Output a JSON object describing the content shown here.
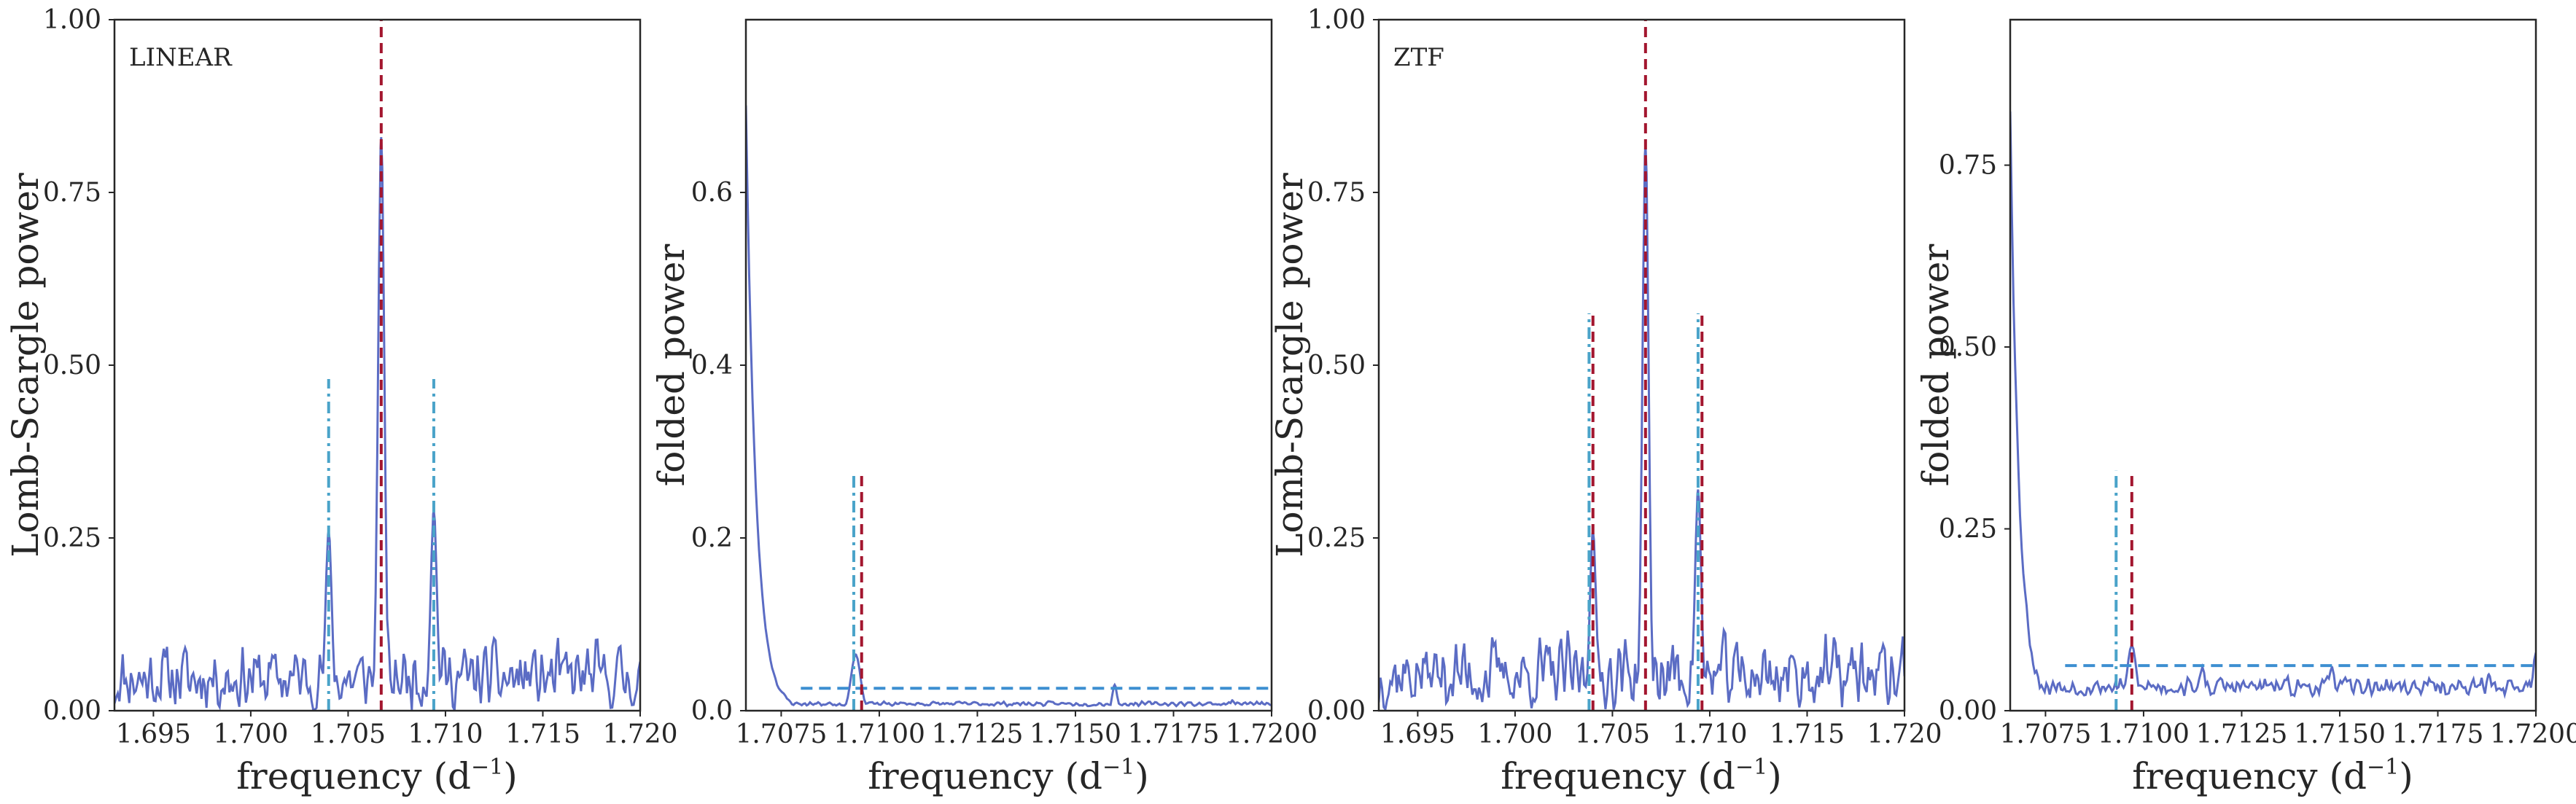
{
  "figure": {
    "colors": {
      "curve": "#5b6cc4",
      "main_line": "#a3162f",
      "alias_dashdot": "#4aa3c9",
      "threshold": "#3d8fd1",
      "axes": "#262626"
    }
  },
  "chart_data": [
    {
      "type": "line",
      "id": "linear-periodogram",
      "annotation": "LINEAR",
      "xlabel": "frequency (d",
      "xlabel_exp": "−1",
      "xlabel_close": ")",
      "ylabel": "Lomb-Scargle power",
      "xlim": [
        1.693,
        1.72
      ],
      "ylim": [
        0.0,
        1.0
      ],
      "xticks": [
        1.695,
        1.7,
        1.705,
        1.71,
        1.715,
        1.72
      ],
      "xtick_labels": [
        "1.695",
        "1.700",
        "1.705",
        "1.710",
        "1.715",
        "1.720"
      ],
      "yticks": [
        0.0,
        0.25,
        0.5,
        0.75,
        1.0
      ],
      "ytick_labels": [
        "0.00",
        "0.25",
        "0.50",
        "0.75",
        "1.00"
      ],
      "peaks": [
        {
          "x": 1.7067,
          "height": 0.83,
          "width": 0.00016
        },
        {
          "x": 1.704,
          "height": 0.26,
          "width": 0.00016
        },
        {
          "x": 1.7094,
          "height": 0.29,
          "width": 0.00016
        }
      ],
      "noise_level": 0.11,
      "seed": 11,
      "vlines": [
        {
          "x": 1.7067,
          "ymax": 1.0,
          "style": "main"
        },
        {
          "x": 1.704,
          "ymax": 0.48,
          "style": "alias"
        },
        {
          "x": 1.7094,
          "ymax": 0.48,
          "style": "alias"
        }
      ]
    },
    {
      "type": "line",
      "id": "linear-folded",
      "annotation": "",
      "xlabel": "frequency (d",
      "xlabel_exp": "−1",
      "xlabel_close": ")",
      "ylabel": "folded power",
      "xlim": [
        1.7066,
        1.72
      ],
      "ylim": [
        0.0,
        0.8
      ],
      "xticks": [
        1.7075,
        1.71,
        1.7125,
        1.715,
        1.7175,
        1.72
      ],
      "xtick_labels": [
        "1.7075",
        "1.7100",
        "1.7125",
        "1.7150",
        "1.7175",
        "1.7200"
      ],
      "yticks": [
        0.0,
        0.2,
        0.4,
        0.6
      ],
      "ytick_labels": [
        "0.0",
        "0.2",
        "0.4",
        "0.6"
      ],
      "decay": {
        "start": 0.7,
        "rate": 0.00025,
        "floor": 0.005
      },
      "peaks": [
        {
          "x": 1.7094,
          "height": 0.065,
          "width": 0.00012
        },
        {
          "x": 1.716,
          "height": 0.03,
          "width": 6e-05
        },
        {
          "x": 1.719,
          "height": 0.012,
          "width": 6e-05
        }
      ],
      "noise_level": 0.006,
      "seed": 23,
      "hline": {
        "y": 0.026,
        "xmin": 1.708,
        "xmax": 1.72
      },
      "vlines": [
        {
          "x": 1.70935,
          "ymax": 0.275,
          "style": "alias"
        },
        {
          "x": 1.70955,
          "ymax": 0.275,
          "style": "main"
        }
      ]
    },
    {
      "type": "line",
      "id": "ztf-periodogram",
      "annotation": "ZTF",
      "xlabel": "frequency (d",
      "xlabel_exp": "−1",
      "xlabel_close": ")",
      "ylabel": "Lomb-Scargle power",
      "xlim": [
        1.693,
        1.72
      ],
      "ylim": [
        0.0,
        1.0
      ],
      "xticks": [
        1.695,
        1.7,
        1.705,
        1.71,
        1.715,
        1.72
      ],
      "xtick_labels": [
        "1.695",
        "1.700",
        "1.705",
        "1.710",
        "1.715",
        "1.720"
      ],
      "yticks": [
        0.0,
        0.25,
        0.5,
        0.75,
        1.0
      ],
      "ytick_labels": [
        "0.00",
        "0.25",
        "0.50",
        "0.75",
        "1.00"
      ],
      "peaks": [
        {
          "x": 1.7067,
          "height": 0.82,
          "width": 0.00016
        },
        {
          "x": 1.704,
          "height": 0.26,
          "width": 0.00016
        },
        {
          "x": 1.7094,
          "height": 0.32,
          "width": 0.00016
        }
      ],
      "noise_level": 0.12,
      "seed": 37,
      "vlines": [
        {
          "x": 1.7067,
          "ymax": 1.0,
          "style": "main"
        },
        {
          "x": 1.7038,
          "ymax": 0.575,
          "style": "alias"
        },
        {
          "x": 1.704,
          "ymax": 0.575,
          "style": "main"
        },
        {
          "x": 1.7094,
          "ymax": 0.575,
          "style": "alias"
        },
        {
          "x": 1.7096,
          "ymax": 0.575,
          "style": "main"
        }
      ]
    },
    {
      "type": "line",
      "id": "ztf-folded",
      "annotation": "",
      "xlabel": "frequency (d",
      "xlabel_exp": "−1",
      "xlabel_close": ")",
      "ylabel": "folded power",
      "xlim": [
        1.7066,
        1.72
      ],
      "ylim": [
        0.0,
        0.95
      ],
      "xticks": [
        1.7075,
        1.71,
        1.7125,
        1.715,
        1.7175,
        1.72
      ],
      "xtick_labels": [
        "1.7075",
        "1.7100",
        "1.7125",
        "1.7150",
        "1.7175",
        "1.7200"
      ],
      "yticks": [
        0.0,
        0.25,
        0.5,
        0.75
      ],
      "ytick_labels": [
        "0.00",
        "0.25",
        "0.50",
        "0.75"
      ],
      "decay": {
        "start": 0.82,
        "rate": 0.00022,
        "floor": 0.018
      },
      "peaks": [
        {
          "x": 1.7097,
          "height": 0.09,
          "width": 0.00012
        },
        {
          "x": 1.7115,
          "height": 0.06,
          "width": 8e-05
        },
        {
          "x": 1.7148,
          "height": 0.06,
          "width": 8e-05
        },
        {
          "x": 1.7188,
          "height": 0.05,
          "width": 8e-05
        },
        {
          "x": 1.72,
          "height": 0.08,
          "width": 8e-05
        }
      ],
      "noise_level": 0.03,
      "seed": 53,
      "hline": {
        "y": 0.062,
        "xmin": 1.708,
        "xmax": 1.72
      },
      "vlines": [
        {
          "x": 1.7093,
          "ymax": 0.33,
          "style": "alias"
        },
        {
          "x": 1.7097,
          "ymax": 0.33,
          "style": "main"
        }
      ]
    }
  ]
}
